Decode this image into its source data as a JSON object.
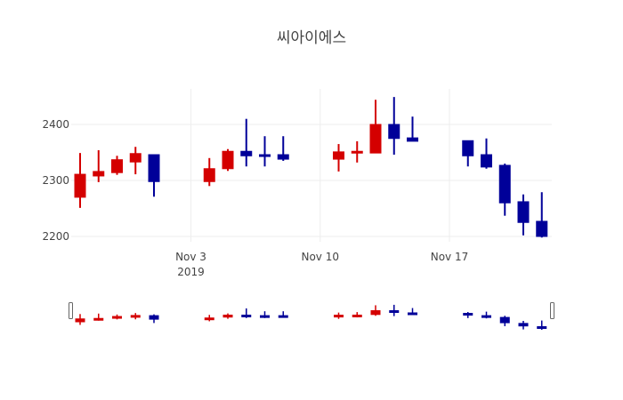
{
  "chart_data": {
    "type": "candlestick",
    "title": "씨아이에스",
    "xlabel": "",
    "ylabel": "",
    "ylim": [
      2190,
      2460
    ],
    "y_ticks": [
      2200,
      2300,
      2400
    ],
    "x_ticks": [
      {
        "label": "Nov 3",
        "sublabel": "2019",
        "date": "2019-11-03"
      },
      {
        "label": "Nov 10",
        "sublabel": "",
        "date": "2019-11-10"
      },
      {
        "label": "Nov 17",
        "sublabel": "",
        "date": "2019-11-17"
      }
    ],
    "grid": true,
    "increasing_color": "#d40000",
    "decreasing_color": "#000099",
    "rangeslider": true,
    "candles": [
      {
        "date": "2019-10-28",
        "open": 2270,
        "high": 2349,
        "low": 2251,
        "close": 2311
      },
      {
        "date": "2019-10-29",
        "open": 2308,
        "high": 2354,
        "low": 2297,
        "close": 2316
      },
      {
        "date": "2019-10-30",
        "open": 2314,
        "high": 2344,
        "low": 2310,
        "close": 2337
      },
      {
        "date": "2019-10-31",
        "open": 2333,
        "high": 2360,
        "low": 2311,
        "close": 2348
      },
      {
        "date": "2019-11-01",
        "open": 2346,
        "high": 2346,
        "low": 2271,
        "close": 2298
      },
      {
        "date": "2019-11-04",
        "open": 2298,
        "high": 2340,
        "low": 2290,
        "close": 2321
      },
      {
        "date": "2019-11-05",
        "open": 2321,
        "high": 2356,
        "low": 2317,
        "close": 2352
      },
      {
        "date": "2019-11-06",
        "open": 2352,
        "high": 2410,
        "low": 2325,
        "close": 2344
      },
      {
        "date": "2019-11-07",
        "open": 2346,
        "high": 2379,
        "low": 2325,
        "close": 2344
      },
      {
        "date": "2019-11-08",
        "open": 2346,
        "high": 2379,
        "low": 2335,
        "close": 2338
      },
      {
        "date": "2019-11-11",
        "open": 2338,
        "high": 2365,
        "low": 2316,
        "close": 2351
      },
      {
        "date": "2019-11-12",
        "open": 2349,
        "high": 2370,
        "low": 2332,
        "close": 2352
      },
      {
        "date": "2019-11-13",
        "open": 2349,
        "high": 2444,
        "low": 2349,
        "close": 2400
      },
      {
        "date": "2019-11-14",
        "open": 2400,
        "high": 2449,
        "low": 2346,
        "close": 2375
      },
      {
        "date": "2019-11-15",
        "open": 2376,
        "high": 2414,
        "low": 2370,
        "close": 2370
      },
      {
        "date": "2019-11-18",
        "open": 2371,
        "high": 2371,
        "low": 2325,
        "close": 2344
      },
      {
        "date": "2019-11-19",
        "open": 2346,
        "high": 2375,
        "low": 2321,
        "close": 2324
      },
      {
        "date": "2019-11-20",
        "open": 2327,
        "high": 2330,
        "low": 2237,
        "close": 2260
      },
      {
        "date": "2019-11-21",
        "open": 2262,
        "high": 2275,
        "low": 2202,
        "close": 2225
      },
      {
        "date": "2019-11-22",
        "open": 2227,
        "high": 2279,
        "low": 2198,
        "close": 2200
      }
    ]
  }
}
